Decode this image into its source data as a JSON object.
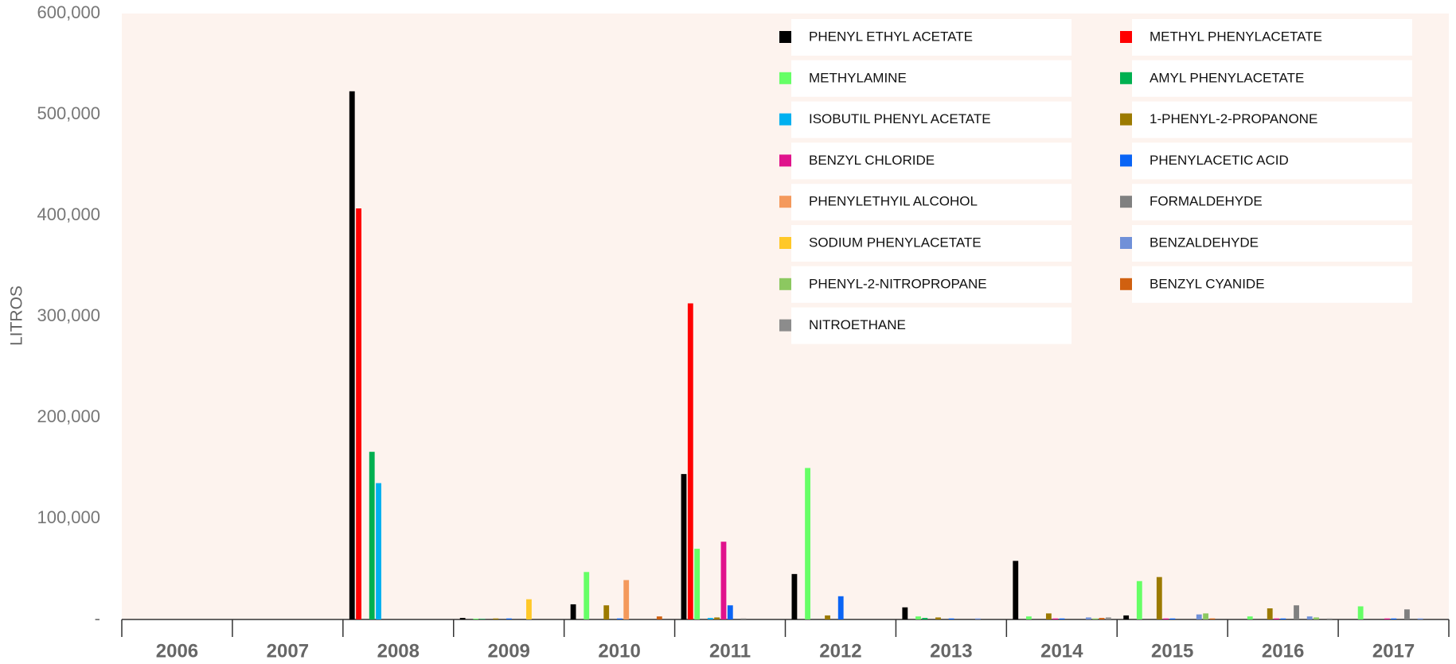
{
  "chart_data": {
    "type": "bar",
    "y_label": "LITROS",
    "categories": [
      "2006",
      "2007",
      "2008",
      "2009",
      "2010",
      "2011",
      "2012",
      "2013",
      "2014",
      "2015",
      "2016",
      "2017"
    ],
    "ylim": [
      0,
      600000
    ],
    "yticks": [
      {
        "value": 0,
        "label": "-"
      },
      {
        "value": 100000,
        "label": "100,000"
      },
      {
        "value": 200000,
        "label": "200,000"
      },
      {
        "value": 300000,
        "label": "300,000"
      },
      {
        "value": 400000,
        "label": "400,000"
      },
      {
        "value": 500000,
        "label": "500,000"
      },
      {
        "value": 600000,
        "label": "600,000"
      }
    ],
    "series": [
      {
        "name": "PHENYL ETHYL ACETATE",
        "color": "#000000",
        "values": [
          0,
          0,
          523000,
          1500,
          15000,
          144000,
          45000,
          12000,
          58000,
          4000,
          0,
          0
        ]
      },
      {
        "name": "METHYL PHENYLACETATE",
        "color": "#ff0000",
        "values": [
          0,
          0,
          407000,
          0,
          0,
          313000,
          0,
          0,
          0,
          0,
          0,
          0
        ]
      },
      {
        "name": "METHYLAMINE",
        "color": "#66ff66",
        "values": [
          0,
          0,
          0,
          800,
          47000,
          70000,
          150000,
          3000,
          3000,
          38000,
          3000,
          13000
        ]
      },
      {
        "name": "AMYL PHENYLACETATE",
        "color": "#00b050",
        "values": [
          0,
          0,
          166000,
          500,
          0,
          0,
          0,
          1500,
          0,
          0,
          0,
          0
        ]
      },
      {
        "name": "ISOBUTIL PHENYL ACETATE",
        "color": "#00b0f0",
        "values": [
          0,
          0,
          135000,
          0,
          0,
          1500,
          0,
          0,
          0,
          0,
          0,
          0
        ]
      },
      {
        "name": "1-PHENYL-2-PROPANONE",
        "color": "#9c7a00",
        "values": [
          0,
          0,
          0,
          1000,
          14000,
          2000,
          4000,
          2000,
          6000,
          42000,
          11000,
          0
        ]
      },
      {
        "name": "BENZYL CHLORIDE",
        "color": "#e0138c",
        "values": [
          0,
          0,
          0,
          0,
          0,
          77000,
          0,
          0,
          1000,
          1000,
          1000,
          1000
        ]
      },
      {
        "name": "PHENYLACETIC ACID",
        "color": "#0a64f5",
        "values": [
          0,
          0,
          0,
          1000,
          1000,
          14000,
          23000,
          1000,
          1000,
          1000,
          1000,
          1000
        ]
      },
      {
        "name": "PHENYLETHYIL ALCOHOL",
        "color": "#f4995c",
        "values": [
          0,
          0,
          0,
          0,
          39000,
          0,
          0,
          0,
          0,
          0,
          0,
          0
        ]
      },
      {
        "name": "FORMALDEHYDE",
        "color": "#808080",
        "values": [
          0,
          0,
          0,
          0,
          0,
          1000,
          0,
          0,
          0,
          0,
          14000,
          10000
        ]
      },
      {
        "name": "SODIUM PHENYLACETATE",
        "color": "#ffc828",
        "values": [
          0,
          0,
          0,
          20000,
          0,
          0,
          0,
          0,
          0,
          0,
          0,
          0
        ]
      },
      {
        "name": "BENZALDEHYDE",
        "color": "#7090d8",
        "values": [
          0,
          0,
          0,
          0,
          0,
          0,
          0,
          1000,
          2000,
          5000,
          3000,
          1000
        ]
      },
      {
        "name": "PHENYL-2-NITROPROPANE",
        "color": "#8cc860",
        "values": [
          0,
          0,
          0,
          0,
          0,
          0,
          0,
          0,
          1000,
          6000,
          2000,
          0
        ]
      },
      {
        "name": "BENZYL CYANIDE",
        "color": "#d06010",
        "values": [
          0,
          0,
          0,
          0,
          3000,
          0,
          0,
          0,
          1500,
          1000,
          0,
          0
        ]
      },
      {
        "name": "NITROETHANE",
        "color": "#8c8c8c",
        "values": [
          0,
          0,
          0,
          0,
          0,
          0,
          0,
          0,
          2000,
          0,
          1000,
          0
        ]
      }
    ]
  }
}
